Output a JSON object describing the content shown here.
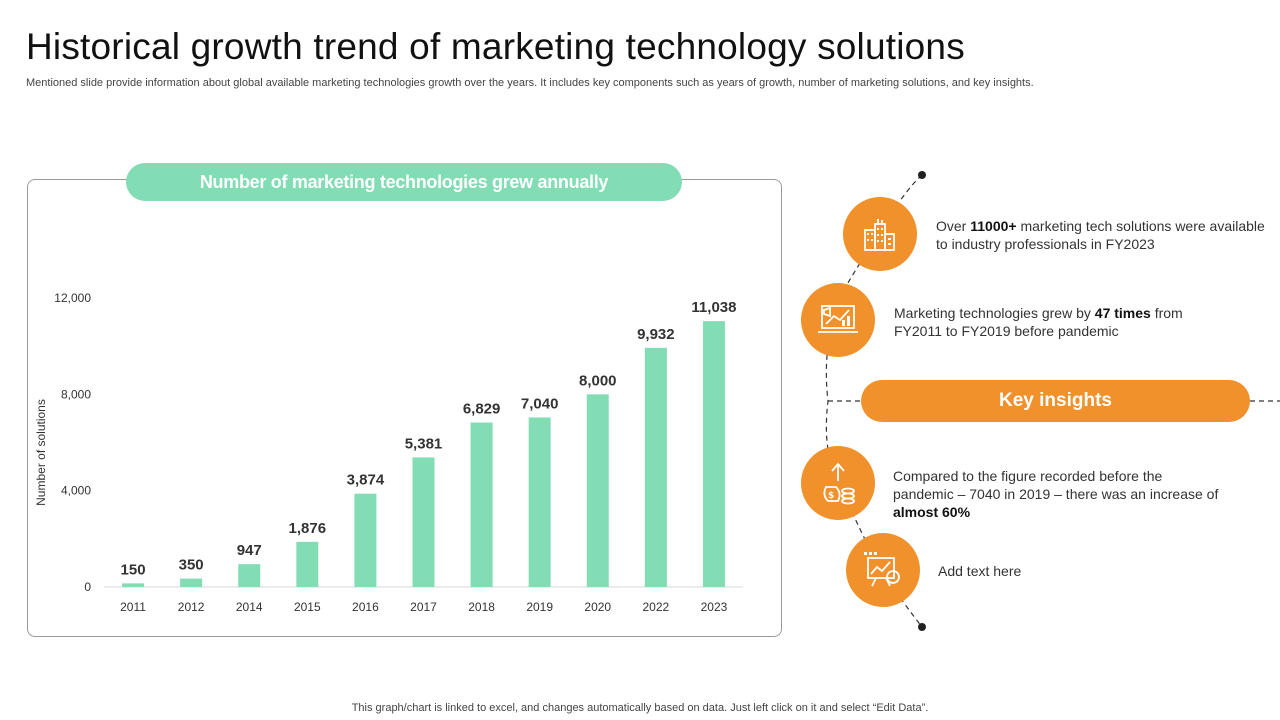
{
  "page": {
    "title": "Historical growth trend of marketing technology solutions",
    "subtitle": "Mentioned slide provide information about global available marketing technologies growth over the years. It includes key components such as years of growth, number of marketing solutions, and key insights.",
    "footer": "This graph/chart is linked to excel,  and changes automatically based on data. Just left click on it and select “Edit Data”."
  },
  "colors": {
    "bar": "#82dcb4",
    "accent": "#f0912b",
    "text": "#333333"
  },
  "chart_data": {
    "type": "bar",
    "title": "Number of marketing technologies grew annually",
    "xlabel": "",
    "ylabel": "Number of solutions",
    "categories": [
      "2011",
      "2012",
      "2014",
      "2015",
      "2016",
      "2017",
      "2018",
      "2019",
      "2020",
      "2022",
      "2023"
    ],
    "values": [
      150,
      350,
      947,
      1876,
      3874,
      5381,
      6829,
      7040,
      8000,
      9932,
      11038
    ],
    "data_labels": [
      "150",
      "350",
      "947",
      "1,876",
      "3,874",
      "5,381",
      "6,829",
      "7,040",
      "8,000",
      "9,932",
      "11,038"
    ],
    "yticks": [
      0,
      4000,
      8000,
      12000
    ],
    "ytick_labels": [
      "0",
      "4,000",
      "8,000",
      "12,000"
    ],
    "ylim": [
      0,
      12000
    ],
    "grid": false,
    "legend": "none"
  },
  "insights": {
    "heading": "Key insights",
    "items": [
      {
        "icon": "city-buildings-icon",
        "pre": "Over ",
        "bold": "11000+",
        "post": " marketing tech solutions were available to industry professionals in FY2023"
      },
      {
        "icon": "megaphone-chart-icon",
        "pre": "Marketing technologies grew by ",
        "bold": "47 times",
        "post": " from FY2011 to FY2019 before pandemic"
      },
      {
        "icon": "money-growth-icon",
        "pre": "Compared to the figure recorded before the pandemic – 7040 in 2019 – there was an increase of ",
        "bold": "almost 60%",
        "post": ""
      },
      {
        "icon": "presentation-board-icon",
        "pre": "Add text here",
        "bold": "",
        "post": ""
      }
    ]
  }
}
